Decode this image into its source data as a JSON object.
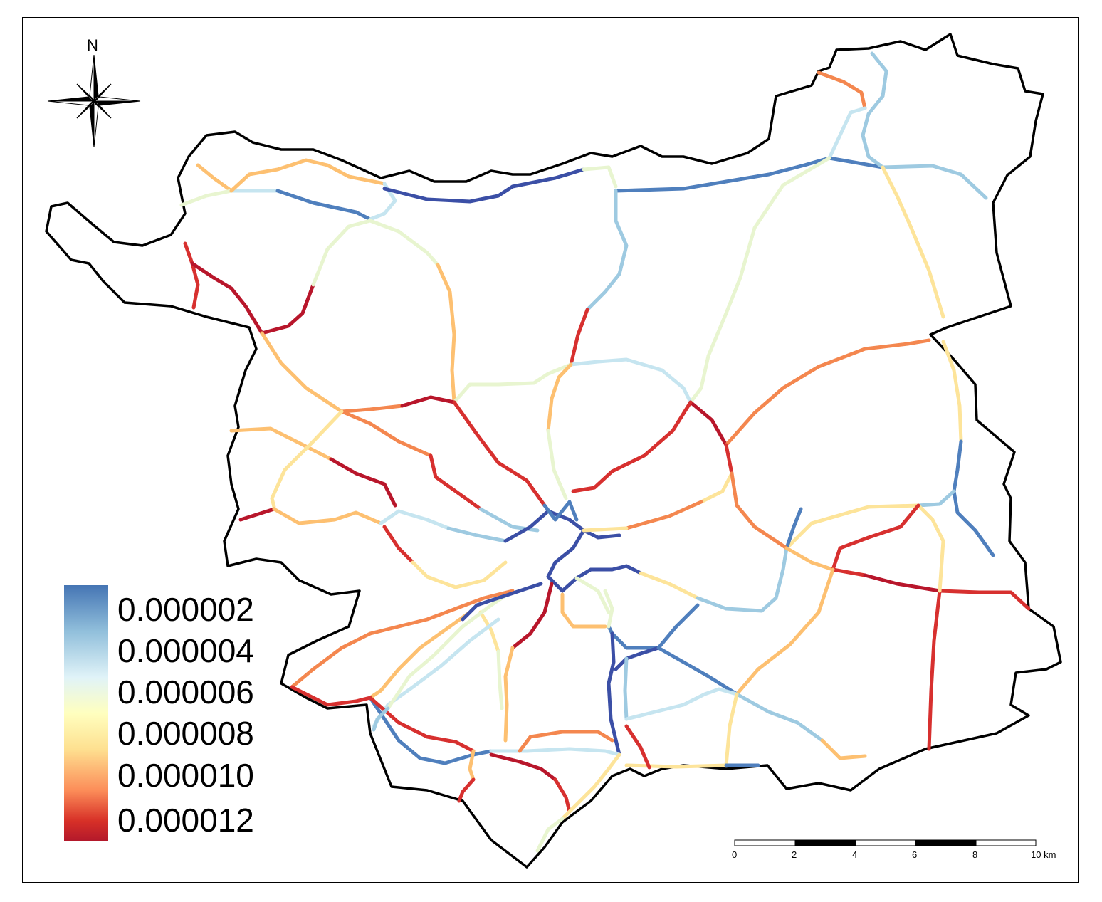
{
  "compass": {
    "label": "N",
    "icon": "north-arrow-icon"
  },
  "legend": {
    "labels": [
      "0.000002",
      "0.000004",
      "0.000006",
      "0.000008",
      "0.000010",
      "0.000012"
    ],
    "colors": [
      "#4575b4",
      "#91bfdb",
      "#e0f3f8",
      "#ffffbf",
      "#fee090",
      "#fc8d59",
      "#d73027",
      "#b2182b"
    ]
  },
  "scalebar": {
    "labels": [
      "0",
      "2",
      "4",
      "6",
      "8",
      "10 km"
    ]
  },
  "colors": {
    "boundary": "#000000",
    "deep_blue": "#3b4fa6",
    "blue": "#4f7fbd",
    "light_blue": "#9ecae1",
    "pale_blue": "#c6e5f0",
    "pale_green": "#e8f5d0",
    "yellow": "#fde49a",
    "orange_light": "#fdc071",
    "orange": "#f4874f",
    "red": "#e0452f",
    "dark_red": "#b8162b"
  }
}
